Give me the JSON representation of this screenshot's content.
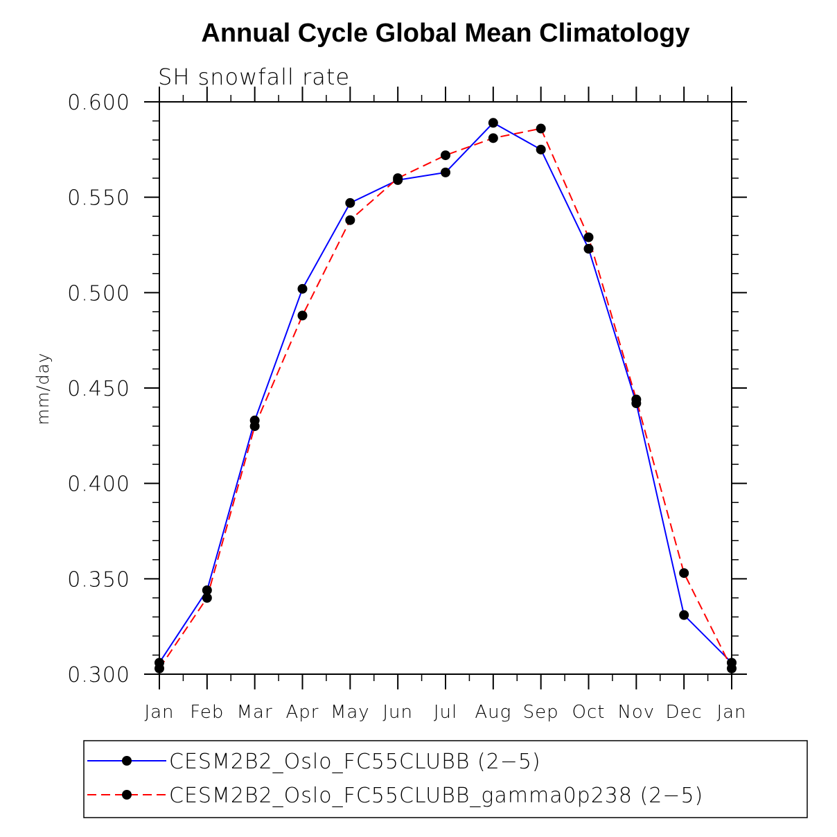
{
  "chart_data": {
    "type": "line",
    "title": "Annual Cycle Global Mean Climatology",
    "subtitle": "SH snowfall rate",
    "xlabel": "",
    "ylabel": "mm/day",
    "categories": [
      "Jan",
      "Feb",
      "Mar",
      "Apr",
      "May",
      "Jun",
      "Jul",
      "Aug",
      "Sep",
      "Oct",
      "Nov",
      "Dec",
      "Jan"
    ],
    "ylim": [
      0.3,
      0.6
    ],
    "yticks": [
      "0.300",
      "0.350",
      "0.400",
      "0.450",
      "0.500",
      "0.550",
      "0.600"
    ],
    "grid": false,
    "legend_position": "bottom",
    "series": [
      {
        "name": "CESM2B2_Oslo_FC55CLUBB (2−5)",
        "color": "#0000ff",
        "line_style": "solid",
        "values": [
          0.306,
          0.344,
          0.433,
          0.502,
          0.547,
          0.559,
          0.563,
          0.589,
          0.575,
          0.523,
          0.442,
          0.331,
          0.306
        ]
      },
      {
        "name": "CESM2B2_Oslo_FC55CLUBB_gamma0p238 (2−5)",
        "color": "#ff0000",
        "line_style": "dashed",
        "values": [
          0.303,
          0.34,
          0.43,
          0.488,
          0.538,
          0.56,
          0.572,
          0.581,
          0.586,
          0.529,
          0.444,
          0.353,
          0.303
        ]
      }
    ]
  }
}
